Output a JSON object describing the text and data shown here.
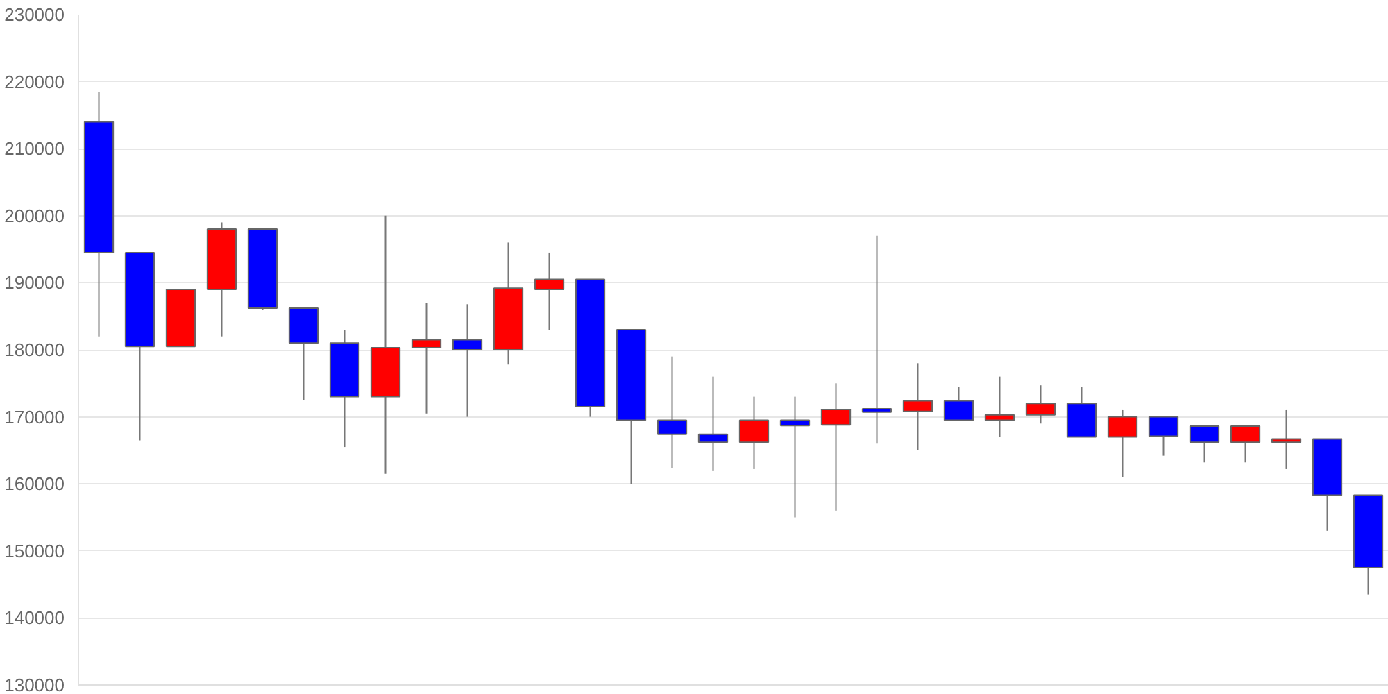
{
  "chart_data": {
    "type": "candlestick",
    "categories": [
      null,
      null,
      null,
      null,
      null,
      null,
      null,
      null,
      null,
      null,
      null,
      null,
      null,
      null,
      null,
      null,
      null,
      null,
      null,
      null,
      null,
      null,
      null,
      null,
      null,
      null,
      null,
      null,
      null,
      null,
      null,
      null
    ],
    "ohlc": [
      [
        214000,
        218500,
        182000,
        194500
      ],
      [
        194500,
        194500,
        166500,
        180500
      ],
      [
        180500,
        189000,
        180500,
        189000
      ],
      [
        189000,
        199000,
        182000,
        198000
      ],
      [
        198000,
        198000,
        186000,
        186200
      ],
      [
        186200,
        186200,
        172500,
        181000
      ],
      [
        181000,
        183000,
        165500,
        173000
      ],
      [
        173000,
        200000,
        161500,
        180300
      ],
      [
        180300,
        187000,
        170500,
        181500
      ],
      [
        181500,
        186800,
        170000,
        180000
      ],
      [
        180000,
        196000,
        177800,
        189200
      ],
      [
        189000,
        194500,
        183000,
        190500
      ],
      [
        190500,
        190500,
        170000,
        171500
      ],
      [
        183000,
        183000,
        160000,
        169500
      ],
      [
        169500,
        179000,
        162300,
        167400
      ],
      [
        167400,
        176000,
        162000,
        166200
      ],
      [
        166200,
        173000,
        162200,
        169500
      ],
      [
        169500,
        173000,
        155000,
        168700
      ],
      [
        168800,
        175000,
        156000,
        171100
      ],
      [
        171200,
        197000,
        166000,
        170700
      ],
      [
        170800,
        178000,
        165000,
        172400
      ],
      [
        172400,
        174500,
        169500,
        169500
      ],
      [
        169500,
        176000,
        167000,
        170300
      ],
      [
        170300,
        174700,
        169000,
        172000
      ],
      [
        172000,
        174500,
        167000,
        167000
      ],
      [
        167000,
        171000,
        161000,
        170000
      ],
      [
        170000,
        170000,
        164200,
        167100
      ],
      [
        168600,
        168600,
        163200,
        166200
      ],
      [
        166200,
        168600,
        163200,
        168600
      ],
      [
        166200,
        171000,
        162200,
        166700
      ],
      [
        166700,
        166700,
        153000,
        158300
      ],
      [
        158300,
        158300,
        143500,
        147500
      ]
    ],
    "colors": [
      "#0000ff",
      "#0000ff",
      "#ff0000",
      "#ff0000",
      "#0000ff",
      "#0000ff",
      "#0000ff",
      "#ff0000",
      "#ff0000",
      "#0000ff",
      "#ff0000",
      "#ff0000",
      "#0000ff",
      "#0000ff",
      "#0000ff",
      "#0000ff",
      "#ff0000",
      "#0000ff",
      "#ff0000",
      "#0000ff",
      "#ff0000",
      "#0000ff",
      "#ff0000",
      "#ff0000",
      "#0000ff",
      "#ff0000",
      "#0000ff",
      "#0000ff",
      "#ff0000",
      "#ff0000",
      "#0000ff",
      "#0000ff"
    ],
    "ylim": [
      130000,
      230000
    ],
    "yticks": [
      130000,
      140000,
      150000,
      160000,
      170000,
      180000,
      190000,
      200000,
      210000,
      220000,
      230000
    ],
    "grid": "y",
    "tick_labels": "y"
  }
}
